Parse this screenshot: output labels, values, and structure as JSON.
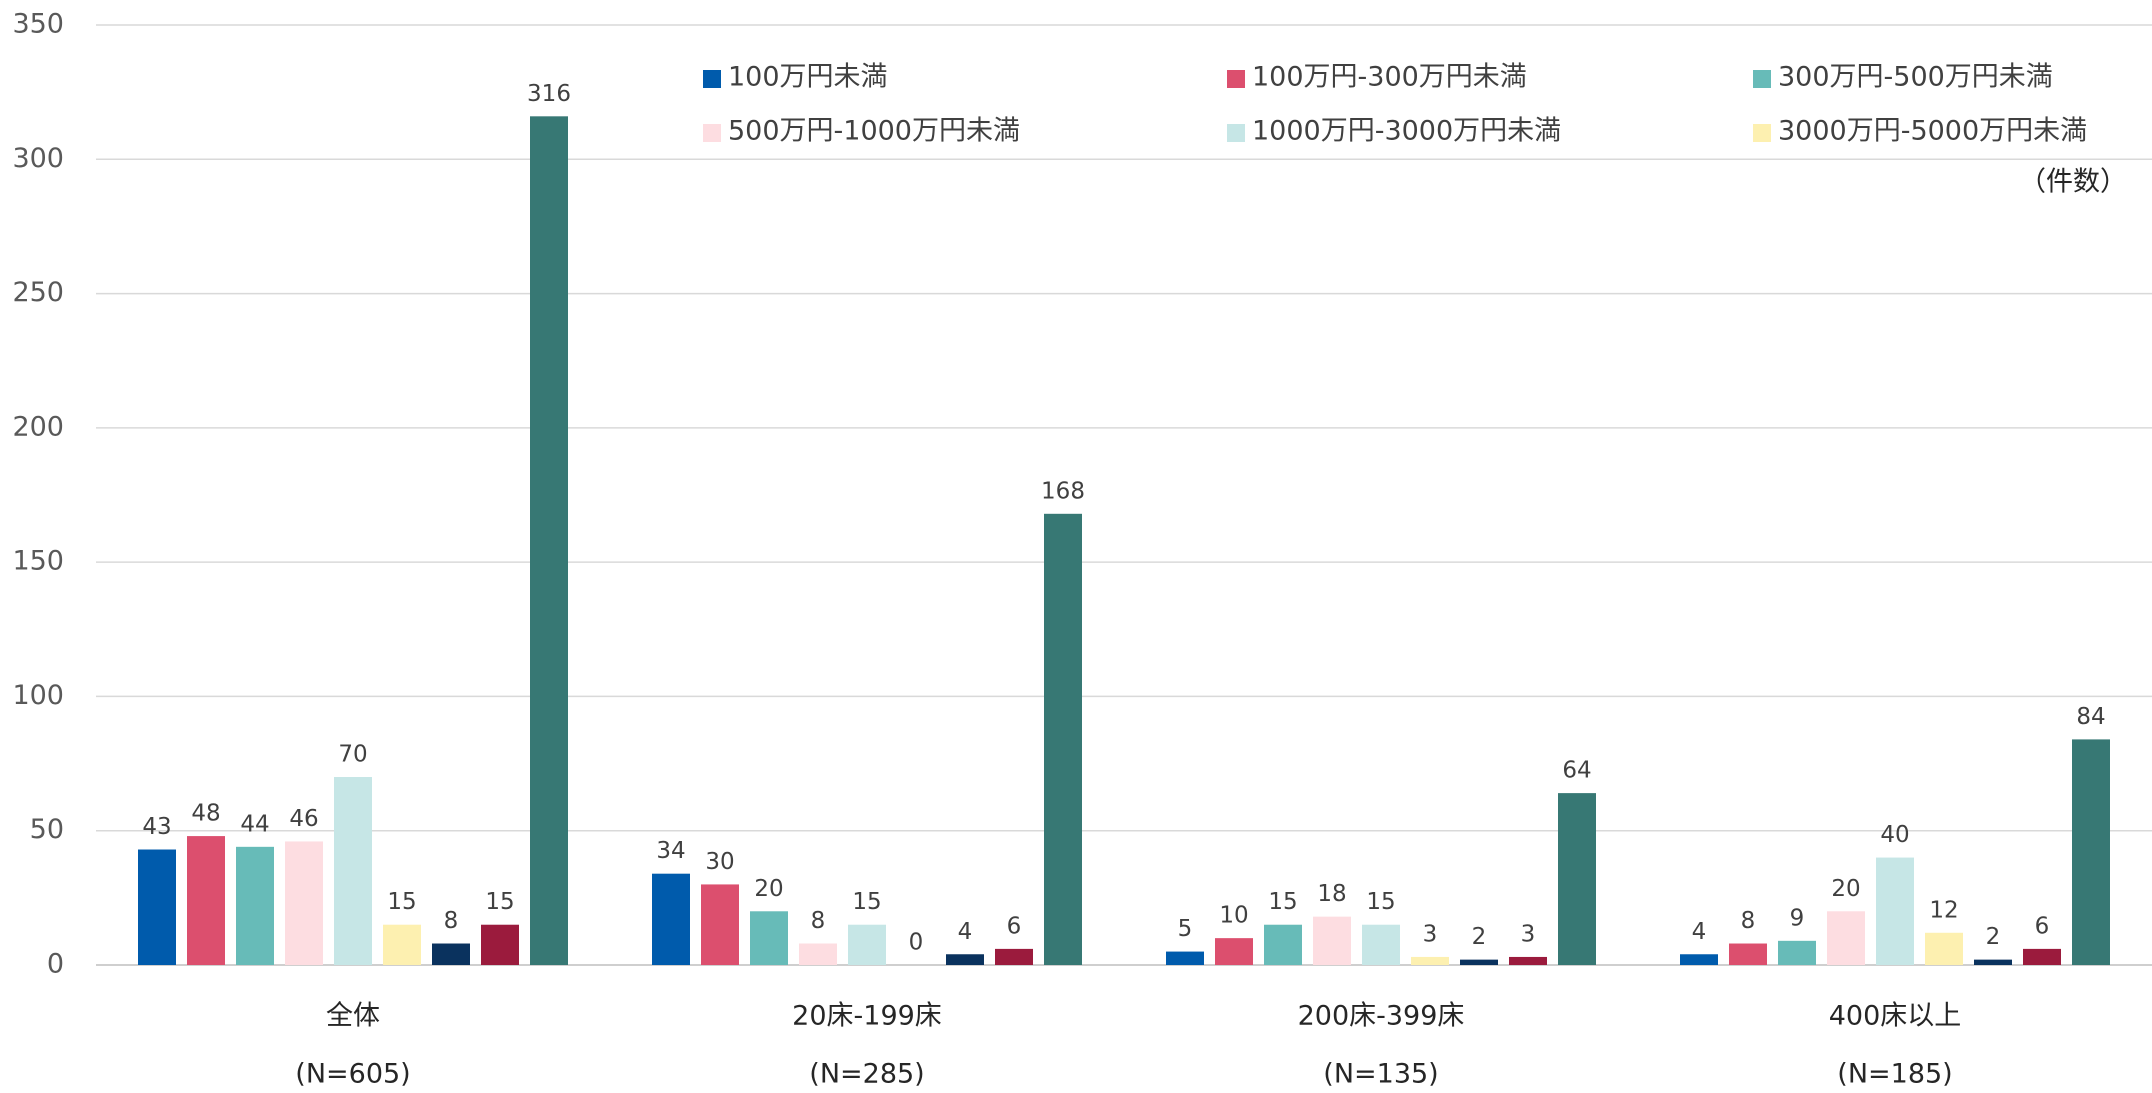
{
  "chart_data": {
    "type": "bar",
    "categories": [
      "全体",
      "20床-199床",
      "200床-399床",
      "400床以上"
    ],
    "category_notes": [
      "(N=605)",
      "(N=285)",
      "(N=135)",
      "(N=185)"
    ],
    "unit_label": "（件数）",
    "ylim": [
      0,
      350
    ],
    "yticks": [
      0,
      50,
      100,
      150,
      200,
      250,
      300,
      350
    ],
    "grid": true,
    "legend": "top-right",
    "series": [
      {
        "name": "100万円未満",
        "color": "#005bac",
        "values": [
          43,
          34,
          5,
          4
        ]
      },
      {
        "name": "100万円-300万円未満",
        "color": "#dc4f6e",
        "values": [
          48,
          30,
          10,
          8
        ]
      },
      {
        "name": "300万円-500万円未満",
        "color": "#67bbb8",
        "values": [
          44,
          20,
          15,
          9
        ]
      },
      {
        "name": "500万円-1000万円未満",
        "color": "#fddde1",
        "values": [
          46,
          8,
          18,
          20
        ]
      },
      {
        "name": "1000万円-3000万円未満",
        "color": "#c6e6e6",
        "values": [
          70,
          15,
          15,
          40
        ]
      },
      {
        "name": "3000万円-5000万円未満",
        "color": "#fdf0b0",
        "values": [
          15,
          0,
          3,
          12
        ]
      },
      {
        "color": "#0a325e",
        "values": [
          8,
          4,
          2,
          2
        ]
      },
      {
        "color": "#9b1b3d",
        "values": [
          15,
          6,
          3,
          6
        ]
      },
      {
        "color": "#377874",
        "values": [
          316,
          168,
          64,
          84
        ]
      }
    ]
  }
}
